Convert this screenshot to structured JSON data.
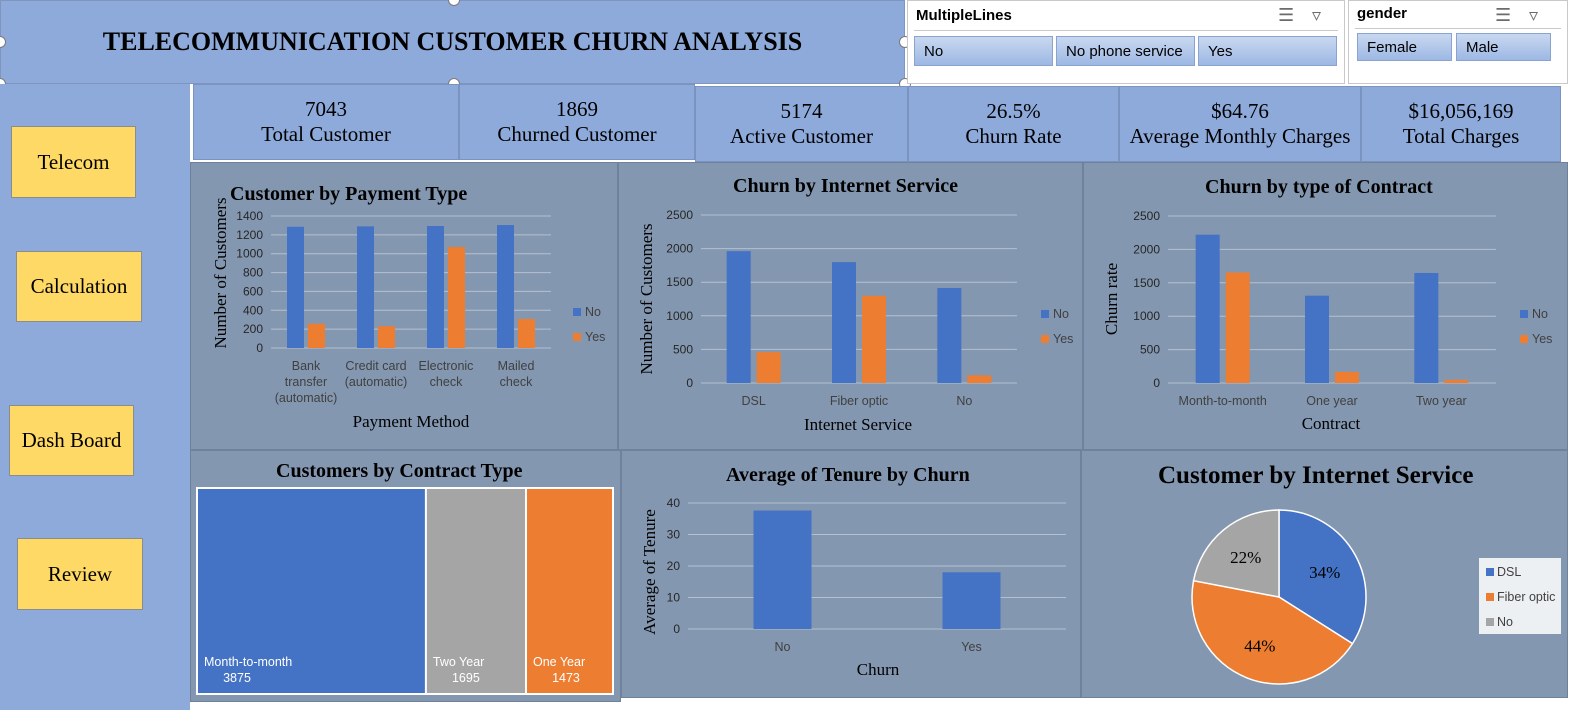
{
  "title": "TELECOMMUNICATION CUSTOMER CHURN ANALYSIS",
  "nav": [
    "Telecom",
    "Calculation",
    "Dash Board",
    "Review"
  ],
  "slicers": {
    "multiple_lines": {
      "title": "MultipleLines",
      "items": [
        "No",
        "No phone service",
        "Yes"
      ]
    },
    "gender": {
      "title": "gender",
      "items": [
        "Female",
        "Male"
      ]
    },
    "icons": [
      "multi-select-icon",
      "clear-filter-icon"
    ]
  },
  "kpis": [
    {
      "value": "7043",
      "label": "Total Customer"
    },
    {
      "value": "1869",
      "label": "Churned Customer"
    },
    {
      "value": "5174",
      "label": "Active Customer"
    },
    {
      "value": "26.5%",
      "label": "Churn Rate"
    },
    {
      "value": "$64.76",
      "label": "Average Monthly Charges"
    },
    {
      "value": "$16,056,169",
      "label": "Total Charges"
    }
  ],
  "colors": {
    "no": "#4472c4",
    "yes": "#ed7d31",
    "gray": "#a5a5a5",
    "panel": "#8497b0",
    "accent": "#8eaadb",
    "button": "#ffd966"
  },
  "chart_data": [
    {
      "id": "payment",
      "type": "bar",
      "title": "Customer by Payment Type",
      "xlabel": "Payment Method",
      "ylabel": "Number of Customers",
      "categories": [
        [
          "Bank",
          "transfer",
          "(automatic)"
        ],
        [
          "Credit card",
          "(automatic)"
        ],
        [
          "Electronic",
          "check"
        ],
        [
          "Mailed",
          "check"
        ]
      ],
      "series": [
        {
          "name": "No",
          "values": [
            1286,
            1290,
            1294,
            1304
          ]
        },
        {
          "name": "Yes",
          "values": [
            258,
            232,
            1071,
            308
          ]
        }
      ],
      "ylim": [
        0,
        1400
      ],
      "yticks": [
        0,
        200,
        400,
        600,
        800,
        1000,
        1200,
        1400
      ],
      "legend": "right"
    },
    {
      "id": "internet",
      "type": "bar",
      "title": "Churn by Internet Service",
      "xlabel": "Internet Service",
      "ylabel": "Number of Customers",
      "categories": [
        [
          "DSL"
        ],
        [
          "Fiber optic"
        ],
        [
          "No"
        ]
      ],
      "series": [
        {
          "name": "No",
          "values": [
            1962,
            1799,
            1413
          ]
        },
        {
          "name": "Yes",
          "values": [
            459,
            1297,
            113
          ]
        }
      ],
      "ylim": [
        0,
        2500
      ],
      "yticks": [
        0,
        500,
        1000,
        1500,
        2000,
        2500
      ],
      "legend": "right"
    },
    {
      "id": "contract",
      "type": "bar",
      "title": "Churn by type of Contract",
      "xlabel": "Contract",
      "ylabel": "Churn rate",
      "categories": [
        [
          "Month-to-month"
        ],
        [
          "One year"
        ],
        [
          "Two year"
        ]
      ],
      "series": [
        {
          "name": "No",
          "values": [
            2220,
            1307,
            1647
          ]
        },
        {
          "name": "Yes",
          "values": [
            1655,
            166,
            48
          ]
        }
      ],
      "ylim": [
        0,
        2500
      ],
      "yticks": [
        0,
        500,
        1000,
        1500,
        2000,
        2500
      ],
      "legend": "right"
    },
    {
      "id": "treemap",
      "type": "treemap",
      "title": "Customers by Contract Type",
      "items": [
        {
          "label": "Month-to-month",
          "value": 3875,
          "color": "#4472c4"
        },
        {
          "label": "Two Year",
          "value": 1695,
          "color": "#a5a5a5"
        },
        {
          "label": "One Year",
          "value": 1473,
          "color": "#ed7d31"
        }
      ]
    },
    {
      "id": "tenure",
      "type": "bar",
      "title": "Average of Tenure by Churn",
      "xlabel": "Churn",
      "ylabel": "Average of Tenure",
      "categories": [
        [
          "No"
        ],
        [
          "Yes"
        ]
      ],
      "series": [
        {
          "values": [
            37.6,
            18.0
          ]
        }
      ],
      "ylim": [
        0,
        40
      ],
      "yticks": [
        0,
        10,
        20,
        30,
        40
      ]
    },
    {
      "id": "pie",
      "type": "pie",
      "title": "Customer by Internet Service",
      "slices": [
        {
          "label": "DSL",
          "percent": 34,
          "color": "#4472c4"
        },
        {
          "label": "Fiber optic",
          "percent": 44,
          "color": "#ed7d31"
        },
        {
          "label": "No",
          "percent": 22,
          "color": "#a5a5a5"
        }
      ],
      "legend": "right"
    }
  ]
}
